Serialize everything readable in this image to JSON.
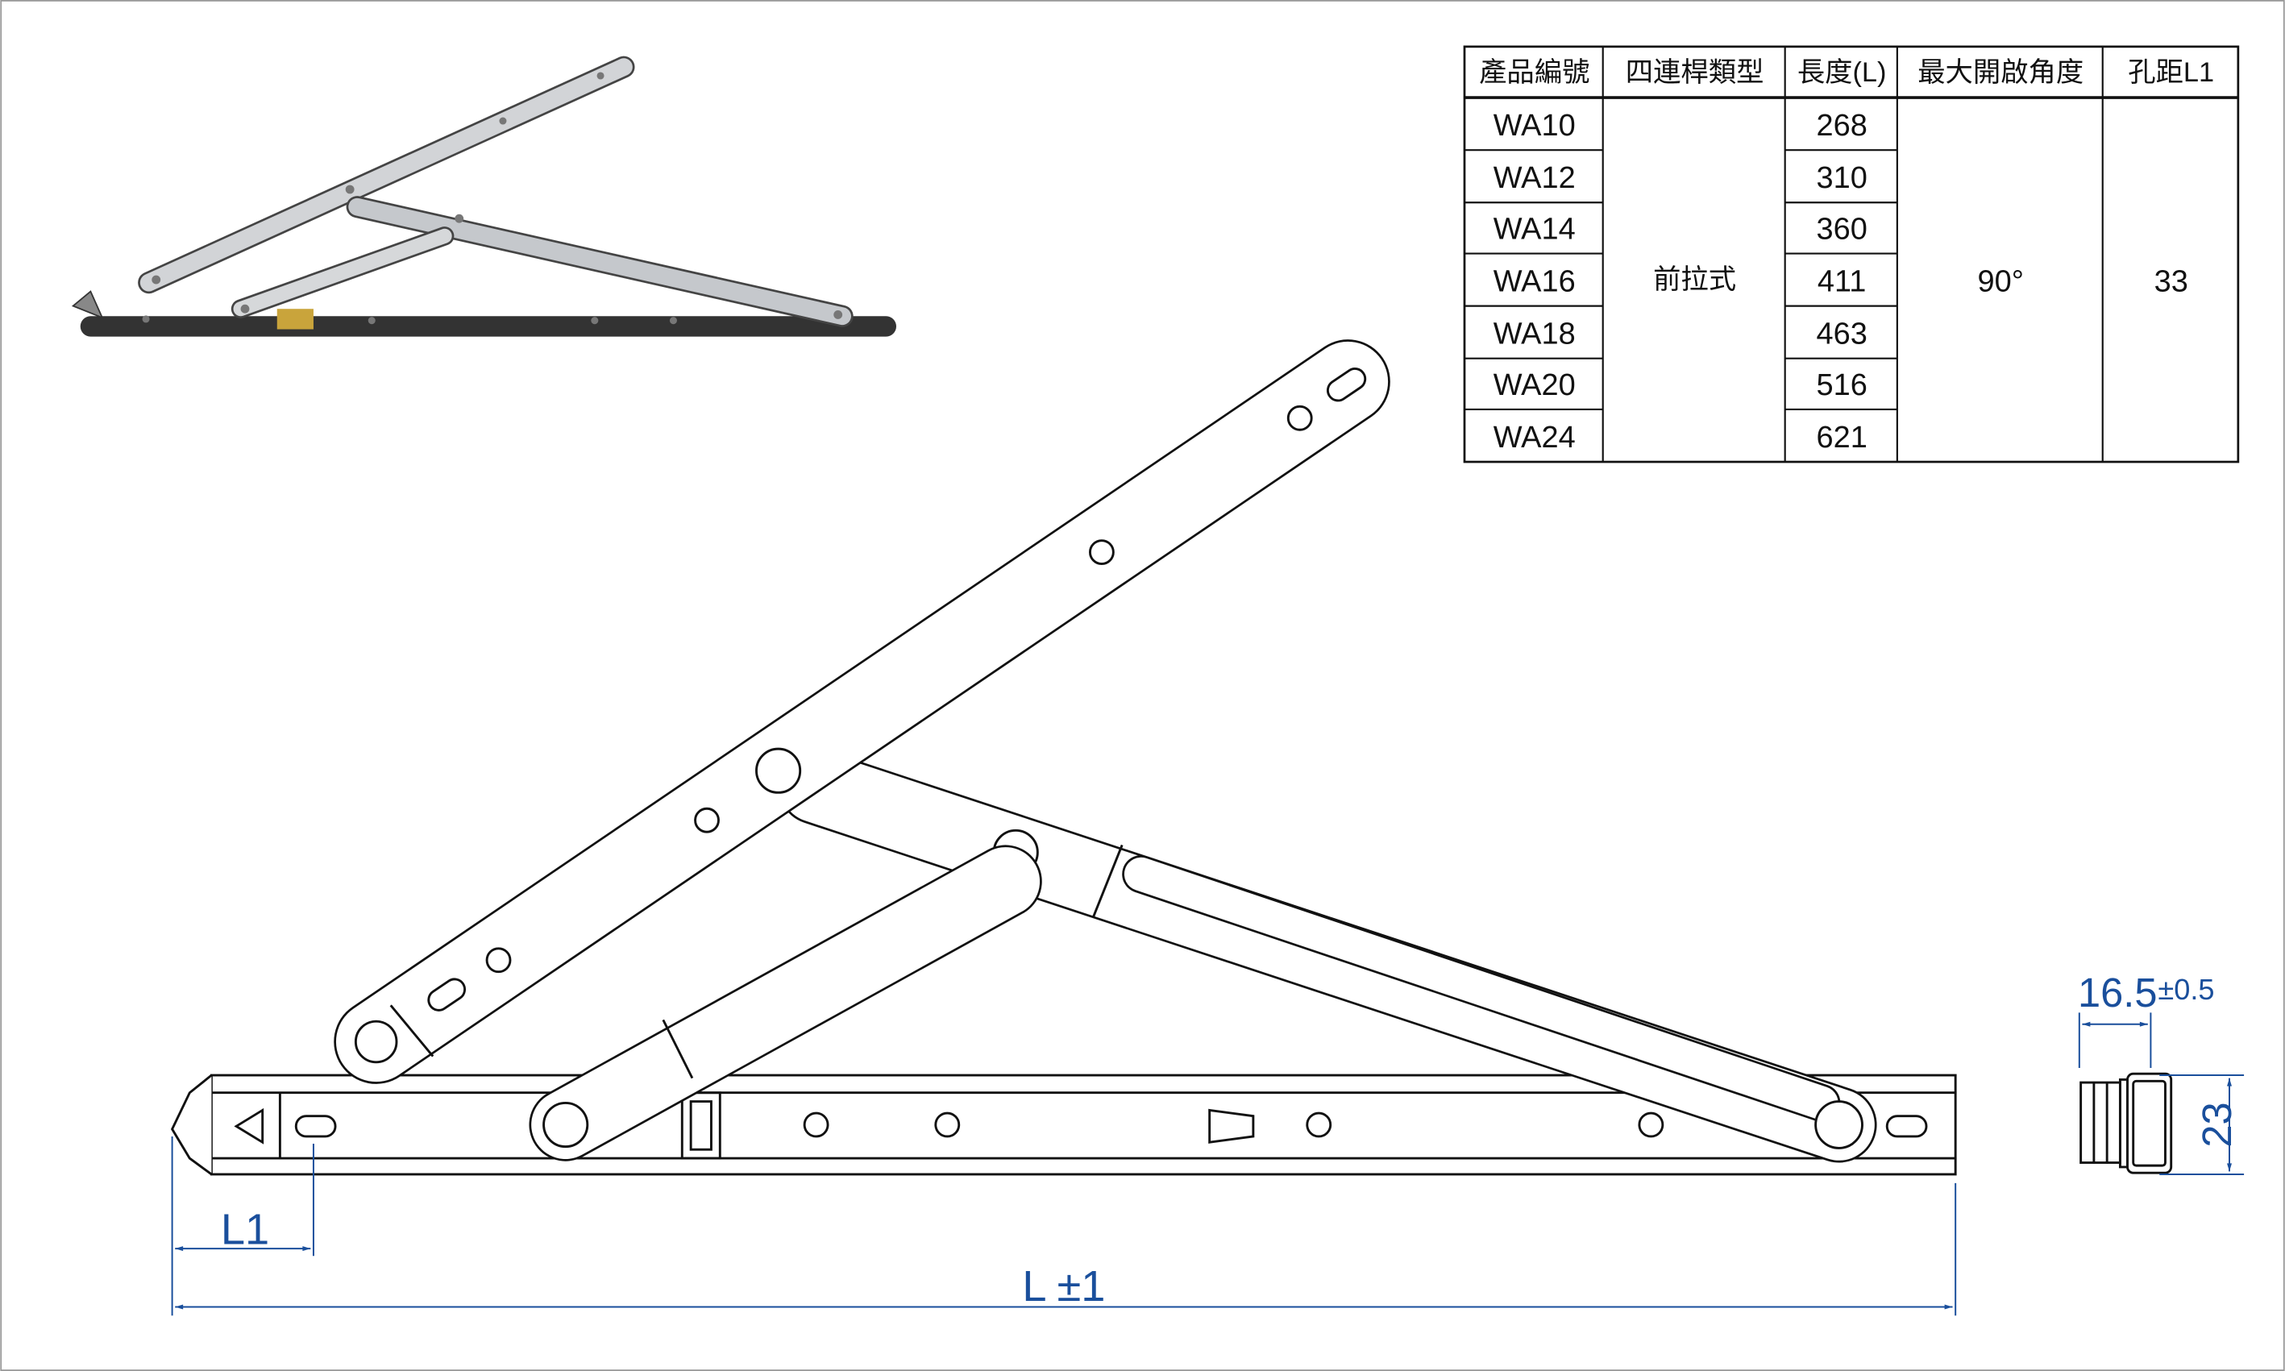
{
  "table": {
    "headers": [
      "產品編號",
      "四連桿類型",
      "長度(L)",
      "最大開啟角度",
      "孔距L1"
    ],
    "models": [
      "WA10",
      "WA12",
      "WA14",
      "WA16",
      "WA18",
      "WA20",
      "WA24"
    ],
    "lengths": [
      "268",
      "310",
      "360",
      "411",
      "463",
      "516",
      "621"
    ],
    "type": "前拉式",
    "max_angle": "90°",
    "hole_distance": "33"
  },
  "dimensions": {
    "l1": "L1",
    "length": "L ±1",
    "width": "16.5",
    "width_tolerance": "±0.5",
    "height": "23"
  },
  "colors": {
    "dimension": "#1a4f9c",
    "outline": "#111111"
  }
}
